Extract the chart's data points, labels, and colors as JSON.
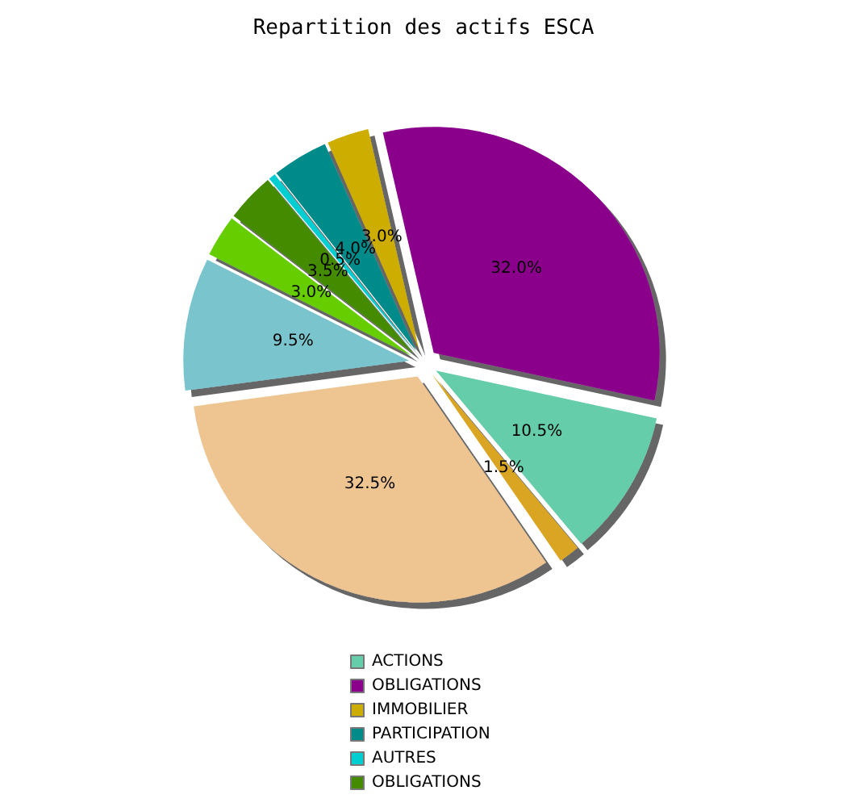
{
  "chart_data": {
    "type": "pie",
    "title": "Repartition des actifs ESCA",
    "categories": [
      "ACTIONS",
      "OBLIGATIONS",
      "IMMOBILIER",
      "PARTICIPATION",
      "AUTRES",
      "OBLIGATIONS",
      null,
      null,
      null,
      null
    ],
    "values": [
      10.5,
      32.0,
      3.0,
      4.0,
      0.5,
      3.5,
      3.0,
      9.5,
      32.5,
      1.5
    ],
    "value_labels": [
      "10.5%",
      "32.0%",
      "3.0%",
      "4.0%",
      "0.5%",
      "3.5%",
      "3.0%",
      "9.5%",
      "32.5%",
      "1.5%"
    ],
    "colors": [
      "#66cdaa",
      "#8b008b",
      "#cdad00",
      "#008b8b",
      "#00ced1",
      "#458b00",
      "#66cd00",
      "#7ac5cd",
      "#eec591",
      "#daa520"
    ],
    "legend": "bottom"
  }
}
